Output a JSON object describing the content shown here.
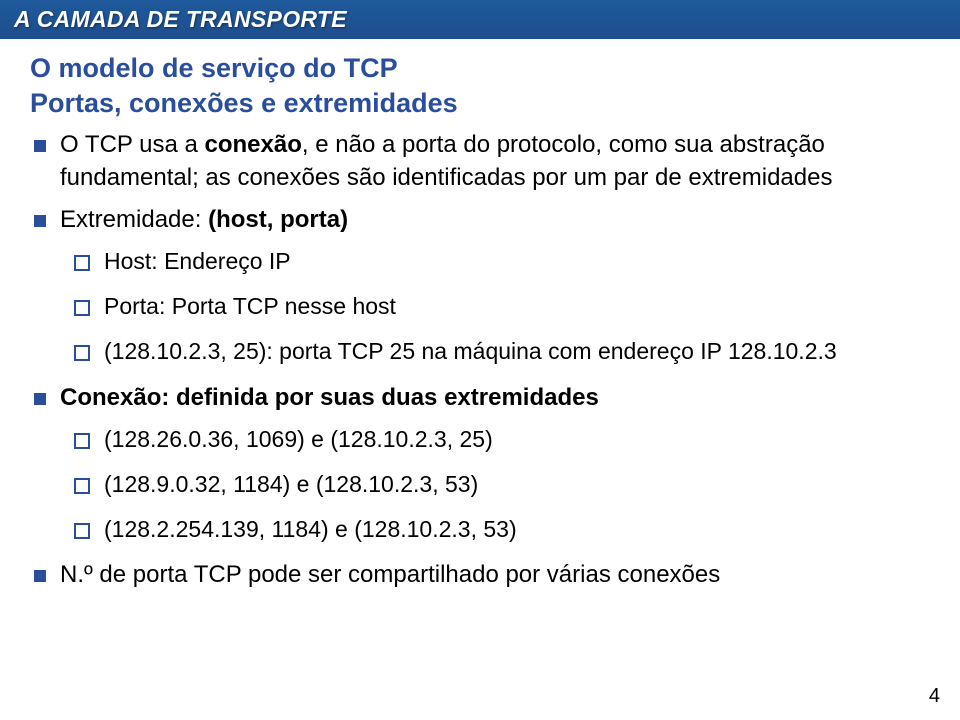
{
  "title": "A CAMADA DE TRANSPORTE",
  "subtitle1": "O modelo de serviço do TCP",
  "subtitle2": "Portas, conexões e extremidades",
  "b1_pre": "O TCP usa a ",
  "b1_bold": "conexão",
  "b1_post": ", e não a porta do protocolo, como sua abstração fundamental; as conexões são identificadas por um par de extremidades",
  "b2_pre": "Extremidade: ",
  "b2_bold": "(host, porta)",
  "b2_s1": "Host: Endereço IP",
  "b2_s2": "Porta: Porta TCP nesse host",
  "b2_s3": "(128.10.2.3, 25): porta TCP 25 na máquina com endereço IP 128.10.2.3",
  "b3_bold": "Conexão: definida por suas duas extremidades",
  "b3_s1": "(128.26.0.36, 1069) e (128.10.2.3, 25)",
  "b3_s2": "(128.9.0.32, 1184) e (128.10.2.3, 53)",
  "b3_s3": "(128.2.254.139, 1184) e (128.10.2.3, 53)",
  "b4": "N.º de porta TCP pode ser compartilhado por várias conexões",
  "page": "4"
}
